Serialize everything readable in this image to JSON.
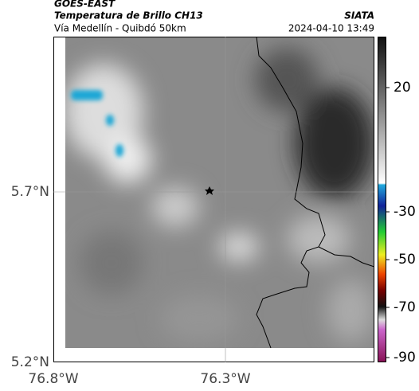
{
  "header": {
    "source": "GOES-EAST",
    "title": "Temperatura de Brillo CH13",
    "route": "Vía Medellín - Quibdó 50km",
    "org": "SIATA",
    "datetime": "2024-04-10 13:49"
  },
  "map": {
    "yticks": [
      "5.7°N",
      "5.2°N"
    ],
    "xticks": [
      "76.8°W",
      "76.3°W"
    ]
  },
  "colorbar": {
    "ticks": [
      "20",
      "-30",
      "-50",
      "-70",
      "-90"
    ]
  }
}
